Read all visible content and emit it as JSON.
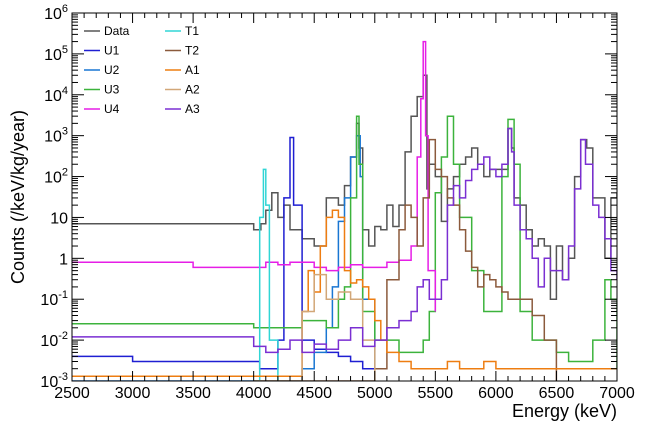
{
  "chart_data": {
    "type": "line",
    "x_unit": "keV",
    "xlabel": "Energy (keV)",
    "ylabel": "Counts (/keV/kg/year)",
    "xlim": [
      2500,
      7000
    ],
    "ylim": [
      0.001,
      1000000
    ],
    "y_scale": "log",
    "grid": false,
    "legend_position": "top-left",
    "x_ticks": [
      {
        "value": 2500,
        "label": "2500"
      },
      {
        "value": 3000,
        "label": "3000"
      },
      {
        "value": 3500,
        "label": "3500"
      },
      {
        "value": 4000,
        "label": "4000"
      },
      {
        "value": 4500,
        "label": "4500"
      },
      {
        "value": 5000,
        "label": "5000"
      },
      {
        "value": 5500,
        "label": "5500"
      },
      {
        "value": 6000,
        "label": "6000"
      },
      {
        "value": 6500,
        "label": "6500"
      },
      {
        "value": 7000,
        "label": "7000"
      }
    ],
    "y_ticks": [
      {
        "value": 0.001,
        "base": "10",
        "exp": "-3",
        "plain": ""
      },
      {
        "value": 0.01,
        "base": "10",
        "exp": "-2",
        "plain": ""
      },
      {
        "value": 0.1,
        "base": "10",
        "exp": "-1",
        "plain": ""
      },
      {
        "value": 1,
        "base": "",
        "exp": "",
        "plain": "1"
      },
      {
        "value": 10,
        "base": "",
        "exp": "",
        "plain": "10"
      },
      {
        "value": 100,
        "base": "10",
        "exp": "2",
        "plain": ""
      },
      {
        "value": 1000,
        "base": "10",
        "exp": "3",
        "plain": ""
      },
      {
        "value": 10000,
        "base": "10",
        "exp": "4",
        "plain": ""
      },
      {
        "value": 100000,
        "base": "10",
        "exp": "5",
        "plain": ""
      },
      {
        "value": 1000000,
        "base": "10",
        "exp": "6",
        "plain": ""
      }
    ],
    "series": [
      {
        "name": "Data",
        "color": "#555555",
        "points": [
          [
            2500,
            7
          ],
          [
            4000,
            5
          ],
          [
            4060,
            7
          ],
          [
            4100,
            15
          ],
          [
            4150,
            40
          ],
          [
            4200,
            10
          ],
          [
            4250,
            20
          ],
          [
            4300,
            5
          ],
          [
            4400,
            3
          ],
          [
            4500,
            2
          ],
          [
            4600,
            30
          ],
          [
            4700,
            20
          ],
          [
            4750,
            60
          ],
          [
            4800,
            300
          ],
          [
            4850,
            2000
          ],
          [
            4870,
            500
          ],
          [
            4900,
            5
          ],
          [
            4950,
            2
          ],
          [
            5000,
            6
          ],
          [
            5050,
            5
          ],
          [
            5100,
            20
          ],
          [
            5150,
            6
          ],
          [
            5200,
            20
          ],
          [
            5250,
            400
          ],
          [
            5300,
            3000
          ],
          [
            5350,
            9000
          ],
          [
            5400,
            30000
          ],
          [
            5430,
            50
          ],
          [
            5450,
            200
          ],
          [
            5500,
            100
          ],
          [
            5550,
            8
          ],
          [
            5600,
            50
          ],
          [
            5650,
            100
          ],
          [
            5700,
            200
          ],
          [
            5750,
            300
          ],
          [
            5800,
            500
          ],
          [
            5850,
            200
          ],
          [
            5900,
            100
          ],
          [
            5950,
            150
          ],
          [
            6000,
            150
          ],
          [
            6050,
            150
          ],
          [
            6100,
            1500
          ],
          [
            6130,
            500
          ],
          [
            6150,
            30
          ],
          [
            6200,
            20
          ],
          [
            6250,
            5
          ],
          [
            6300,
            2
          ],
          [
            6350,
            3
          ],
          [
            6400,
            2
          ],
          [
            6450,
            0.1
          ],
          [
            6500,
            2
          ],
          [
            6550,
            0.3
          ],
          [
            6600,
            1
          ],
          [
            6650,
            100
          ],
          [
            6700,
            800
          ],
          [
            6750,
            500
          ],
          [
            6800,
            30
          ],
          [
            6850,
            30
          ],
          [
            6900,
            1
          ],
          [
            6950,
            30
          ],
          [
            7000,
            40
          ]
        ]
      },
      {
        "name": "U1",
        "color": "#1f1fd2",
        "points": [
          [
            2500,
            0.004
          ],
          [
            3000,
            0.003
          ],
          [
            3500,
            0.003
          ],
          [
            4000,
            0.003
          ],
          [
            4050,
            0.002
          ],
          [
            4100,
            0.002
          ],
          [
            4150,
            0.002
          ],
          [
            4200,
            0.01
          ],
          [
            4250,
            30
          ],
          [
            4300,
            900
          ],
          [
            4330,
            20
          ],
          [
            4400,
            0.01
          ],
          [
            4500,
            0.006
          ],
          [
            4600,
            0.005
          ],
          [
            4700,
            0.004
          ],
          [
            4800,
            0.003
          ],
          [
            4900,
            0.002
          ],
          [
            5000,
            0.002
          ]
        ]
      },
      {
        "name": "U2",
        "color": "#1976d2",
        "points": [
          [
            2500,
            0.001
          ],
          [
            4000,
            0.001
          ],
          [
            4200,
            0.001
          ],
          [
            4400,
            0.002
          ],
          [
            4500,
            0.005
          ],
          [
            4600,
            0.02
          ],
          [
            4650,
            0.2
          ],
          [
            4700,
            8
          ],
          [
            4750,
            30
          ],
          [
            4800,
            300
          ],
          [
            4850,
            1000
          ],
          [
            4880,
            100
          ],
          [
            4900,
            0.1
          ],
          [
            5000,
            0.002
          ]
        ]
      },
      {
        "name": "U3",
        "color": "#3cb33c",
        "points": [
          [
            2500,
            0.025
          ],
          [
            3000,
            0.025
          ],
          [
            3500,
            0.025
          ],
          [
            4000,
            0.02
          ],
          [
            4200,
            0.02
          ],
          [
            4400,
            0.03
          ],
          [
            4500,
            0.03
          ],
          [
            4600,
            0.02
          ],
          [
            4700,
            0.1
          ],
          [
            4750,
            0.2
          ],
          [
            4800,
            30
          ],
          [
            4850,
            3000
          ],
          [
            4870,
            200
          ],
          [
            4900,
            0.05
          ],
          [
            5000,
            0.01
          ],
          [
            5100,
            0.01
          ],
          [
            5200,
            0.005
          ],
          [
            5300,
            0.005
          ],
          [
            5400,
            0.01
          ],
          [
            5450,
            0.05
          ],
          [
            5500,
            40
          ],
          [
            5550,
            300
          ],
          [
            5600,
            3000
          ],
          [
            5650,
            200
          ],
          [
            5700,
            10
          ],
          [
            5800,
            0.5
          ],
          [
            5900,
            0.05
          ],
          [
            6000,
            0.05
          ],
          [
            6050,
            100
          ],
          [
            6100,
            2500
          ],
          [
            6150,
            200
          ],
          [
            6200,
            0.05
          ],
          [
            6300,
            0.01
          ],
          [
            6400,
            0.01
          ],
          [
            6500,
            0.005
          ],
          [
            6600,
            0.003
          ],
          [
            6700,
            0.003
          ],
          [
            6800,
            0.01
          ],
          [
            6900,
            0.3
          ],
          [
            6950,
            0.1
          ],
          [
            7000,
            0.002
          ]
        ]
      },
      {
        "name": "U4",
        "color": "#e61ee6",
        "points": [
          [
            2500,
            0.8
          ],
          [
            3000,
            0.8
          ],
          [
            3500,
            0.6
          ],
          [
            4000,
            0.6
          ],
          [
            4100,
            0.8
          ],
          [
            4200,
            0.7
          ],
          [
            4300,
            0.8
          ],
          [
            4400,
            0.8
          ],
          [
            4500,
            0.6
          ],
          [
            4600,
            0.5
          ],
          [
            4700,
            0.6
          ],
          [
            4800,
            0.7
          ],
          [
            4900,
            0.6
          ],
          [
            5000,
            0.6
          ],
          [
            5100,
            0.8
          ],
          [
            5200,
            0.9
          ],
          [
            5300,
            2
          ],
          [
            5350,
            300
          ],
          [
            5380,
            8000
          ],
          [
            5400,
            200000
          ],
          [
            5420,
            1000
          ],
          [
            5440,
            0.5
          ],
          [
            5500,
            0.05
          ]
        ]
      },
      {
        "name": "T1",
        "color": "#30d5d5",
        "points": [
          [
            4000,
            0.001
          ],
          [
            4050,
            10
          ],
          [
            4080,
            150
          ],
          [
            4100,
            20
          ],
          [
            4130,
            0.01
          ],
          [
            4200,
            0.001
          ]
        ]
      },
      {
        "name": "T2",
        "color": "#8b5a3c",
        "points": [
          [
            4000,
            0.001
          ],
          [
            5000,
            0.002
          ],
          [
            5100,
            0.3
          ],
          [
            5200,
            5
          ],
          [
            5250,
            20
          ],
          [
            5300,
            10
          ],
          [
            5350,
            2
          ],
          [
            5400,
            30
          ],
          [
            5450,
            800
          ],
          [
            5500,
            150
          ],
          [
            5550,
            100
          ],
          [
            5600,
            30
          ],
          [
            5650,
            20
          ],
          [
            5700,
            5
          ],
          [
            5750,
            1.5
          ],
          [
            5800,
            0.6
          ],
          [
            5850,
            0.2
          ],
          [
            5900,
            0.4
          ],
          [
            5950,
            0.3
          ],
          [
            6000,
            0.2
          ],
          [
            6050,
            0.15
          ],
          [
            6100,
            0.1
          ],
          [
            6200,
            0.1
          ],
          [
            6300,
            0.04
          ],
          [
            6400,
            0.01
          ],
          [
            6500,
            0.001
          ]
        ]
      },
      {
        "name": "A1",
        "color": "#ee7d11",
        "points": [
          [
            2500,
            0.0013
          ],
          [
            4000,
            0.0013
          ],
          [
            4400,
            0.05
          ],
          [
            4450,
            0.5
          ],
          [
            4500,
            0.15
          ],
          [
            4550,
            2
          ],
          [
            4600,
            10
          ],
          [
            4650,
            15
          ],
          [
            4700,
            10
          ],
          [
            4750,
            0.5
          ],
          [
            4800,
            0.25
          ],
          [
            4850,
            0.3
          ],
          [
            4900,
            0.2
          ],
          [
            4950,
            0.1
          ],
          [
            5000,
            0.03
          ],
          [
            5050,
            0.01
          ],
          [
            5100,
            0.005
          ],
          [
            5200,
            0.003
          ],
          [
            5300,
            0.002
          ],
          [
            5400,
            0.002
          ],
          [
            5500,
            0.002
          ],
          [
            5600,
            0.003
          ],
          [
            5700,
            0.002
          ],
          [
            5800,
            0.002
          ],
          [
            5900,
            0.003
          ],
          [
            6000,
            0.002
          ],
          [
            6200,
            0.002
          ],
          [
            6400,
            0.002
          ],
          [
            6600,
            0.002
          ],
          [
            6800,
            0.002
          ],
          [
            7000,
            0.002
          ]
        ]
      },
      {
        "name": "A2",
        "color": "#d2a778",
        "points": [
          [
            4000,
            0.001
          ],
          [
            4200,
            0.001
          ],
          [
            4400,
            0.05
          ],
          [
            4500,
            0.4
          ],
          [
            4600,
            0.1
          ],
          [
            4700,
            0.15
          ],
          [
            4800,
            0.1
          ],
          [
            4900,
            0.01
          ],
          [
            5000,
            0.001
          ]
        ]
      },
      {
        "name": "A3",
        "color": "#7a2fd2",
        "points": [
          [
            2500,
            0.012
          ],
          [
            3000,
            0.012
          ],
          [
            3500,
            0.012
          ],
          [
            4000,
            0.007
          ],
          [
            4100,
            0.005
          ],
          [
            4200,
            0.006
          ],
          [
            4300,
            0.01
          ],
          [
            4400,
            0.005
          ],
          [
            4500,
            0.008
          ],
          [
            4600,
            0.006
          ],
          [
            4700,
            0.01
          ],
          [
            4800,
            0.02
          ],
          [
            4900,
            0.007
          ],
          [
            5000,
            0.01
          ],
          [
            5100,
            0.02
          ],
          [
            5200,
            0.03
          ],
          [
            5300,
            0.05
          ],
          [
            5350,
            0.2
          ],
          [
            5400,
            0.3
          ],
          [
            5450,
            0.1
          ],
          [
            5500,
            0.1
          ],
          [
            5550,
            0.3
          ],
          [
            5600,
            20
          ],
          [
            5650,
            60
          ],
          [
            5700,
            30
          ],
          [
            5750,
            80
          ],
          [
            5800,
            150
          ],
          [
            5850,
            200
          ],
          [
            5900,
            300
          ],
          [
            5950,
            150
          ],
          [
            6000,
            100
          ],
          [
            6050,
            200
          ],
          [
            6100,
            1500
          ],
          [
            6130,
            400
          ],
          [
            6150,
            20
          ],
          [
            6200,
            5
          ],
          [
            6250,
            3
          ],
          [
            6300,
            1
          ],
          [
            6350,
            0.2
          ],
          [
            6400,
            1
          ],
          [
            6450,
            0.5
          ],
          [
            6500,
            0.5
          ],
          [
            6550,
            0.3
          ],
          [
            6600,
            2
          ],
          [
            6650,
            50
          ],
          [
            6700,
            800
          ],
          [
            6740,
            200
          ],
          [
            6800,
            20
          ],
          [
            6850,
            10
          ],
          [
            6900,
            3
          ],
          [
            6950,
            0.5
          ],
          [
            7000,
            0.3
          ]
        ]
      }
    ]
  }
}
